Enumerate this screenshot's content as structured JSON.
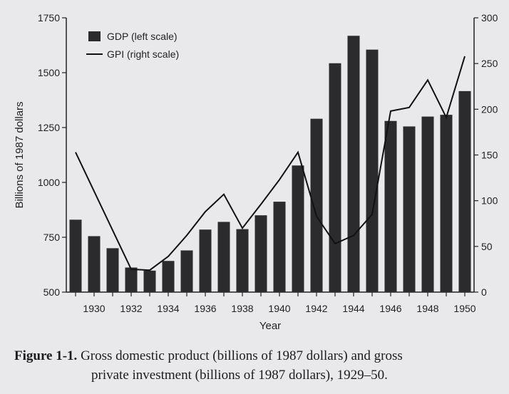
{
  "chart_data": {
    "type": "bar+line",
    "categories": [
      "1929",
      "1930",
      "1931",
      "1932",
      "1933",
      "1934",
      "1935",
      "1936",
      "1937",
      "1938",
      "1939",
      "1940",
      "1941",
      "1942",
      "1943",
      "1944",
      "1945",
      "1946",
      "1947",
      "1948",
      "1949",
      "1950"
    ],
    "x_tick_labels": [
      "1930",
      "1932",
      "1934",
      "1936",
      "1938",
      "1940",
      "1942",
      "1944",
      "1946",
      "1948",
      "1950"
    ],
    "series": [
      {
        "name": "GDP (left scale)",
        "type": "bar",
        "axis": "left",
        "color": "#2b2b2e",
        "values": [
          830,
          755,
          700,
          612,
          598,
          642,
          690,
          785,
          820,
          787,
          850,
          912,
          1077,
          1290,
          1543,
          1668,
          1605,
          1280,
          1255,
          1300,
          1308,
          1416
        ]
      },
      {
        "name": "GPI (right scale)",
        "type": "line",
        "axis": "right",
        "color": "#111111",
        "values": [
          153,
          null,
          null,
          25,
          24,
          39,
          62,
          88,
          107,
          70,
          96,
          123,
          153,
          83,
          53,
          62,
          85,
          198,
          202,
          232,
          191,
          258
        ]
      }
    ],
    "xlabel": "Year",
    "ylabel": "Billions of 1987 dollars",
    "ylim": [
      500,
      1750
    ],
    "yticks": [
      500,
      750,
      1000,
      1250,
      1500,
      1750
    ],
    "y2lim": [
      0,
      300
    ],
    "y2ticks": [
      0,
      50,
      100,
      150,
      200,
      250,
      300
    ],
    "legend_position": "top-left",
    "grid": false
  },
  "caption": {
    "label": "Figure 1-1.",
    "text_line1": "Gross domestic product (billions of 1987 dollars) and gross",
    "text_line2": "private investment (billions of 1987 dollars), 1929–50."
  }
}
